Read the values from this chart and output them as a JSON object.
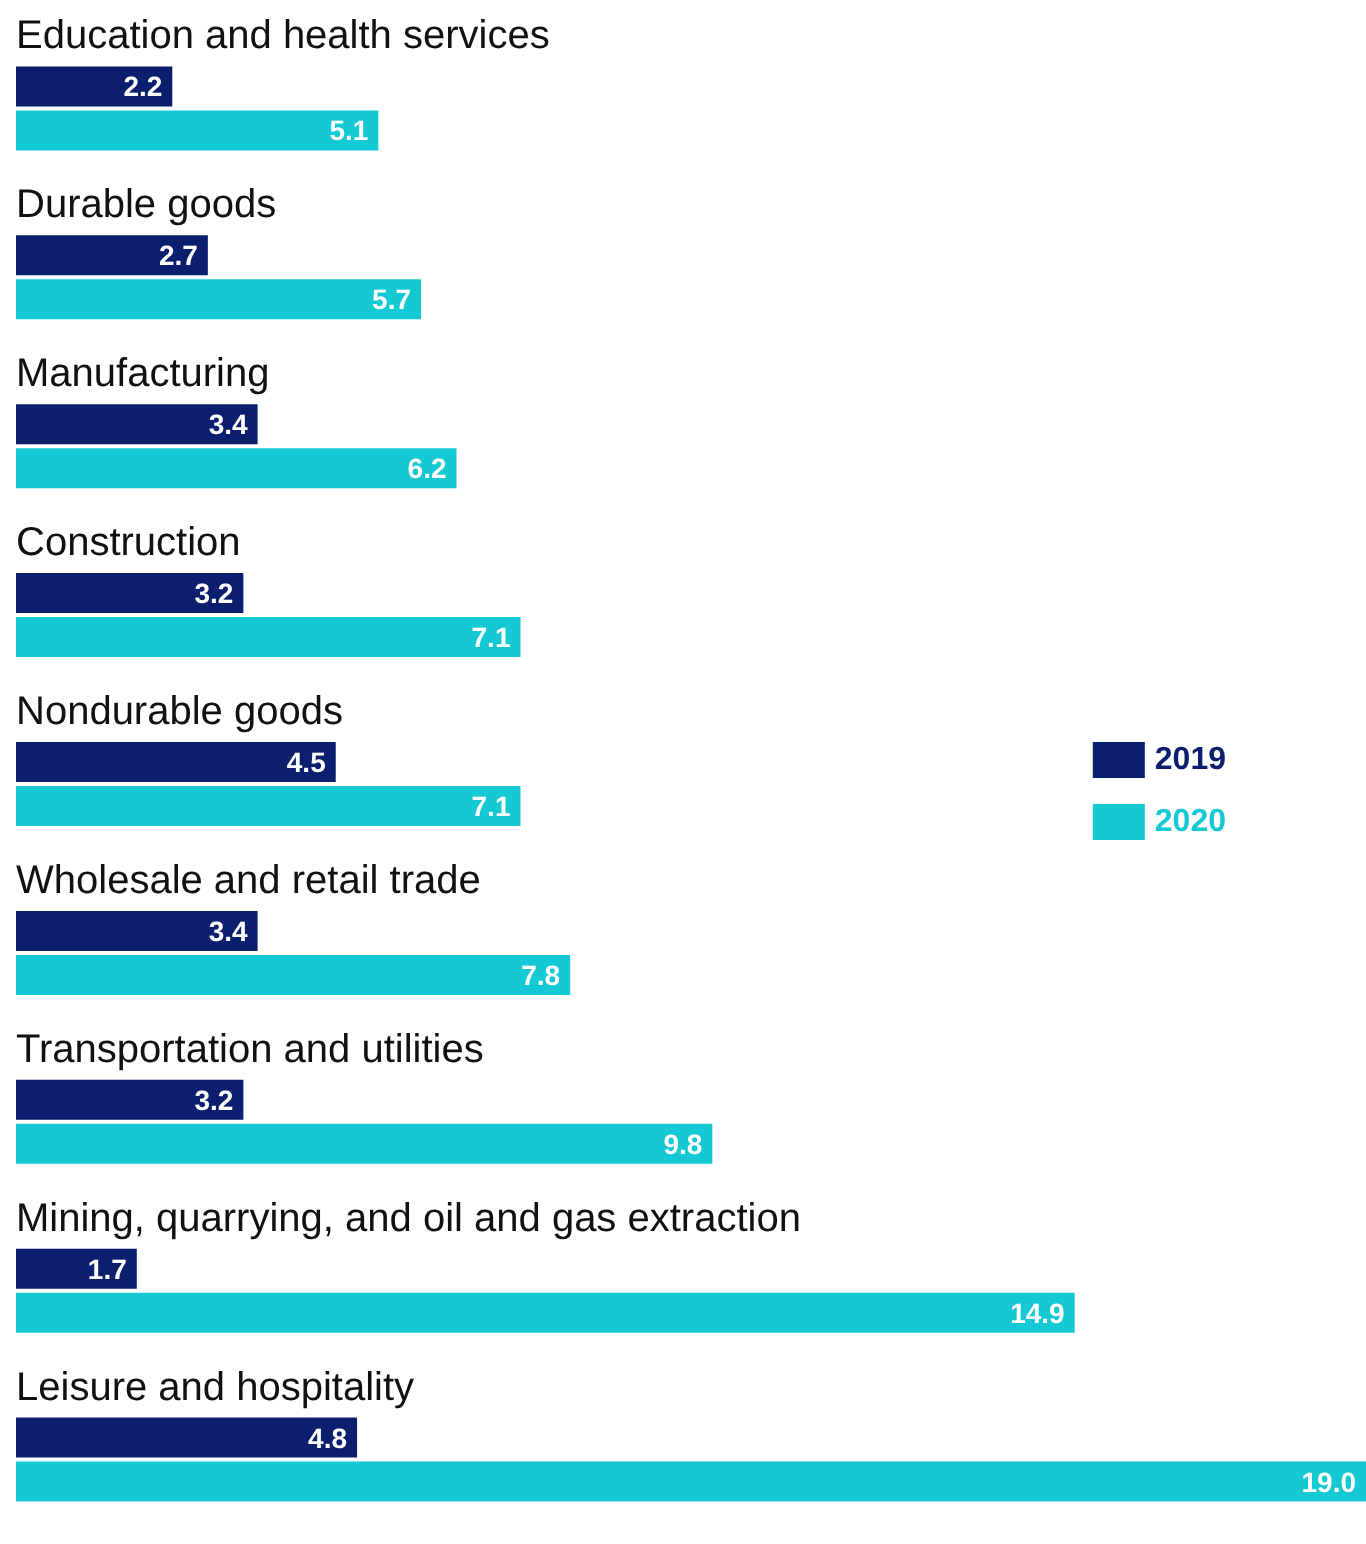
{
  "chart_data": {
    "type": "bar",
    "orientation": "horizontal",
    "categories": [
      "Education and health services",
      "Durable goods",
      "Manufacturing",
      "Construction",
      "Nondurable goods",
      "Wholesale and retail trade",
      "Transportation and utilities",
      "Mining, quarrying, and oil and gas extraction",
      "Leisure and hospitality"
    ],
    "series": [
      {
        "name": "2019",
        "color": "#0b1f6e",
        "values": [
          2.2,
          2.7,
          3.4,
          3.2,
          4.5,
          3.4,
          3.2,
          1.7,
          4.8
        ],
        "value_labels": [
          "2.2",
          "2.7",
          "3.4",
          "3.2",
          "4.5",
          "3.4",
          "3.2",
          "1.7",
          "4.8"
        ]
      },
      {
        "name": "2020",
        "color": "#14c8d4",
        "values": [
          5.1,
          5.7,
          6.2,
          7.1,
          7.1,
          7.8,
          9.8,
          14.9,
          19.0
        ],
        "value_labels": [
          "5.1",
          "5.7",
          "6.2",
          "7.1",
          "7.1",
          "7.8",
          "9.8",
          "14.9",
          "19.0"
        ]
      }
    ],
    "legend": "right"
  }
}
